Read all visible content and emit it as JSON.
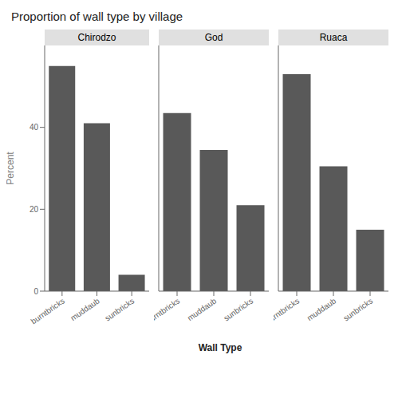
{
  "title": "Proportion of wall type by village",
  "xlabel": "Wall Type",
  "ylabel": "Percent",
  "chart_data": [
    {
      "type": "bar",
      "title": "Chirodzo",
      "categories": [
        "burntbricks",
        "muddaub",
        "sunbricks"
      ],
      "values": [
        55.0,
        41.0,
        4.0
      ],
      "color": "#595959",
      "ylim": [
        0,
        60
      ],
      "yticks": [
        0,
        20,
        40
      ],
      "grid": false
    },
    {
      "type": "bar",
      "title": "God",
      "categories": [
        "burntbricks",
        "muddaub",
        "sunbricks"
      ],
      "values": [
        43.5,
        34.5,
        21.0
      ],
      "color": "#595959",
      "ylim": [
        0,
        60
      ],
      "yticks": [
        0,
        20,
        40
      ],
      "grid": false,
      "tick_labels": "x"
    },
    {
      "type": "bar",
      "title": "Ruaca",
      "categories": [
        "burntbricks",
        "muddaub",
        "sunbricks"
      ],
      "values": [
        53.0,
        30.5,
        15.0
      ],
      "color": "#595959",
      "ylim": [
        0,
        60
      ],
      "yticks": [
        0,
        20,
        40
      ],
      "grid": false,
      "tick_labels": "x"
    }
  ]
}
